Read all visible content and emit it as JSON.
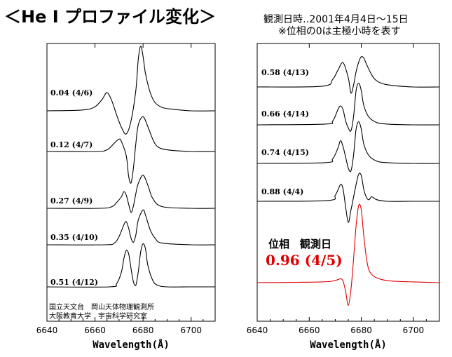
{
  "header": {
    "title": "＜He I プロファイル変化＞",
    "observation": "観測日時‥2001年4月4日～15日",
    "note": "※位相の0は主極小時を表す"
  },
  "colors": {
    "frame": "#000000",
    "profile": "#000000",
    "highlight": "#e00000",
    "background": "#ffffff"
  },
  "chart_data": [
    {
      "type": "line",
      "panel": "left",
      "title": "",
      "xlabel": "Wavelength(Å)",
      "ylabel": "",
      "xlim": [
        6640,
        6710
      ],
      "xticks": [
        "6640",
        "6660",
        "6680",
        "6700"
      ],
      "credits": [
        "国立天文台　岡山天体物理観測所",
        "大阪教育大学　宇宙科学研究室"
      ],
      "series": [
        {
          "name": "0.04 (4/6)",
          "color": "#000000",
          "x": [
            6640,
            6655,
            6660,
            6663,
            6665,
            6667,
            6669,
            6671,
            6673,
            6675,
            6677,
            6678,
            6679,
            6680,
            6681,
            6683,
            6685,
            6688,
            6692,
            6700,
            6710
          ],
          "y": [
            0,
            0.01,
            0.05,
            0.14,
            0.22,
            0.12,
            -0.05,
            -0.2,
            -0.28,
            -0.12,
            0.25,
            0.62,
            0.78,
            0.66,
            0.45,
            0.22,
            0.1,
            0.04,
            0.02,
            0,
            0
          ]
        },
        {
          "name": "0.12 (4/7)",
          "color": "#000000",
          "x": [
            6640,
            6660,
            6665,
            6668,
            6670,
            6671,
            6673,
            6674,
            6675,
            6676,
            6677,
            6678,
            6680,
            6682,
            6684,
            6686,
            6690,
            6700,
            6710
          ],
          "y": [
            0,
            0,
            0.02,
            0.1,
            0.15,
            0.12,
            -0.05,
            -0.3,
            -0.38,
            -0.2,
            0.1,
            0.32,
            0.42,
            0.3,
            0.15,
            0.06,
            0.02,
            0,
            0
          ]
        },
        {
          "name": "0.27 (4/9)",
          "color": "#000000",
          "x": [
            6640,
            6662,
            6667,
            6669,
            6671,
            6672,
            6673,
            6674,
            6675,
            6676,
            6677,
            6678,
            6680,
            6682,
            6684,
            6688,
            6700,
            6710
          ],
          "y": [
            0,
            0,
            0.02,
            0.07,
            0.14,
            0.2,
            0.16,
            0.05,
            -0.05,
            0.03,
            0.18,
            0.3,
            0.4,
            0.28,
            0.12,
            0.02,
            0,
            0
          ]
        },
        {
          "name": "0.35 (4/10)",
          "color": "#000000",
          "x": [
            6640,
            6664,
            6668,
            6670,
            6672,
            6673,
            6674,
            6675,
            6676,
            6677,
            6678,
            6680,
            6681,
            6683,
            6685,
            6688,
            6700,
            6710
          ],
          "y": [
            0,
            0,
            0.02,
            0.1,
            0.24,
            0.28,
            0.2,
            0.08,
            0.03,
            0.12,
            0.3,
            0.42,
            0.36,
            0.18,
            0.08,
            0.02,
            0,
            0
          ]
        },
        {
          "name": "0.51 (4/12)",
          "color": "#000000",
          "x": [
            6640,
            6666,
            6669,
            6671,
            6672,
            6673,
            6674,
            6675,
            6676,
            6677,
            6678,
            6679,
            6680,
            6681,
            6682,
            6684,
            6686,
            6690,
            6700,
            6710
          ],
          "y": [
            0,
            0,
            0.04,
            0.18,
            0.34,
            0.44,
            0.4,
            0.22,
            0.06,
            0.02,
            0.18,
            0.42,
            0.52,
            0.46,
            0.26,
            0.08,
            0.02,
            0,
            0,
            0
          ]
        }
      ]
    },
    {
      "type": "line",
      "panel": "right",
      "title": "",
      "xlabel": "Wavelength(Å)",
      "ylabel": "",
      "xlim": [
        6640,
        6710
      ],
      "xticks": [
        "6640",
        "6660",
        "6680",
        "6700"
      ],
      "legend_heading": "位相　観測日",
      "series": [
        {
          "name": "0.58 (4/13)",
          "color": "#000000",
          "x": [
            6640,
            6665,
            6669,
            6671,
            6673,
            6675,
            6676,
            6677,
            6678,
            6679,
            6680,
            6681,
            6682,
            6684,
            6686,
            6690,
            6700,
            6710
          ],
          "y": [
            0,
            0.01,
            0.1,
            0.22,
            0.32,
            0.12,
            -0.08,
            0.02,
            0.2,
            0.33,
            0.4,
            0.38,
            0.3,
            0.16,
            0.08,
            0.03,
            0,
            0
          ]
        },
        {
          "name": "0.66 (4/14)",
          "color": "#000000",
          "x": [
            6640,
            6666,
            6669,
            6671,
            6672,
            6673,
            6674,
            6675,
            6676,
            6677,
            6678,
            6679,
            6680,
            6681,
            6683,
            6686,
            6690,
            6700,
            6710
          ],
          "y": [
            0,
            0.01,
            0.05,
            0.2,
            0.25,
            0.2,
            0.05,
            -0.04,
            -0.08,
            0.1,
            0.45,
            0.55,
            0.45,
            0.25,
            0.1,
            0.03,
            0.01,
            0,
            0
          ]
        },
        {
          "name": "0.74 (4/15)",
          "color": "#000000",
          "x": [
            6640,
            6666,
            6669,
            6671,
            6672,
            6673,
            6674,
            6675,
            6676,
            6677,
            6678,
            6679,
            6680,
            6681,
            6683,
            6686,
            6690,
            6700,
            6710
          ],
          "y": [
            0,
            0.01,
            0.06,
            0.2,
            0.3,
            0.22,
            0.08,
            -0.06,
            -0.1,
            0.1,
            0.45,
            0.55,
            0.45,
            0.25,
            0.1,
            0.03,
            0.01,
            0,
            0
          ]
        },
        {
          "name": "0.88 (4/4)",
          "color": "#000000",
          "x": [
            6640,
            6667,
            6670,
            6672,
            6673,
            6674,
            6675,
            6676,
            6677,
            6678,
            6679,
            6680,
            6681,
            6682,
            6683,
            6684,
            6686,
            6690,
            6700,
            6710
          ],
          "y": [
            0,
            0.01,
            0.08,
            0.22,
            0.16,
            -0.08,
            -0.28,
            -0.12,
            0.05,
            0.22,
            0.36,
            0.34,
            0.15,
            0.05,
            0.02,
            0.06,
            0.02,
            0,
            0,
            0
          ]
        },
        {
          "name": "0.96 (4/5)",
          "color": "#e00000",
          "x": [
            6640,
            6665,
            6670,
            6672,
            6673,
            6674,
            6675,
            6676,
            6677,
            6678,
            6679,
            6680,
            6681,
            6682,
            6683,
            6685,
            6688,
            6692,
            6700,
            6710
          ],
          "y": [
            0,
            0.01,
            0.03,
            0.05,
            0.02,
            -0.12,
            -0.3,
            -0.1,
            0.3,
            0.75,
            1.02,
            0.96,
            0.6,
            0.32,
            0.16,
            0.08,
            0.04,
            0.02,
            0.01,
            0
          ]
        }
      ]
    }
  ]
}
